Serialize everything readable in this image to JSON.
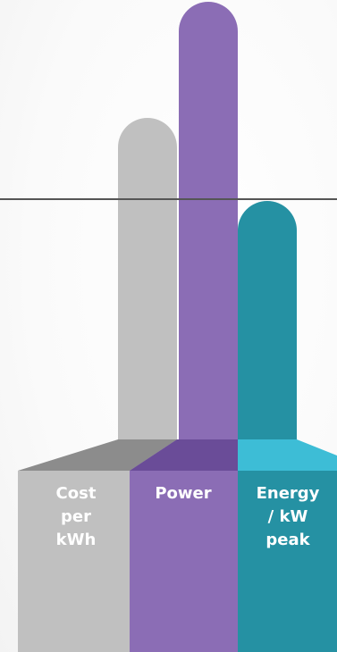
{
  "columns": [
    {
      "label_lines": [
        "Cost",
        "per",
        "kWh"
      ],
      "color": "#c0c0c0",
      "top_color": "#8c8c8c"
    },
    {
      "label_lines": [
        "Power"
      ],
      "color": "#8b6db5",
      "top_color": "#6a4c98"
    },
    {
      "label_lines": [
        "Energy",
        "/ kW",
        "peak"
      ],
      "color": "#2591a3",
      "top_color": "#3dbdd6"
    }
  ],
  "line_color": "#555555"
}
